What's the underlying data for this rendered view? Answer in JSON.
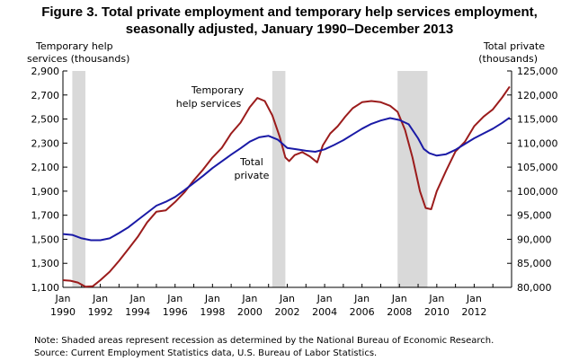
{
  "chart_data": {
    "type": "line",
    "title": [
      "Figure 3. Total private employment and temporary help services employment,",
      "seasonally adjusted, January 1990–December 2013"
    ],
    "left_axis": {
      "title": [
        "Temporary help",
        "services (thousands)"
      ],
      "range": [
        1100,
        2900
      ],
      "ticks": [
        "1,100",
        "1,300",
        "1,500",
        "1,700",
        "1,900",
        "2,100",
        "2,300",
        "2,500",
        "2,700",
        "2,900"
      ]
    },
    "right_axis": {
      "title": [
        "Total private",
        "(thousands)"
      ],
      "range": [
        80000,
        125000
      ],
      "ticks": [
        "80,000",
        "85,000",
        "90,000",
        "95,000",
        "100,000",
        "105,000",
        "110,000",
        "115,000",
        "120,000",
        "125,000"
      ]
    },
    "x_axis": {
      "range": [
        1990,
        2014
      ],
      "tick_labels": [
        [
          "Jan",
          "1990"
        ],
        [
          "Jan",
          "1992"
        ],
        [
          "Jan",
          "1994"
        ],
        [
          "Jan",
          "1996"
        ],
        [
          "Jan",
          "1998"
        ],
        [
          "Jan",
          "2000"
        ],
        [
          "Jan",
          "2002"
        ],
        [
          "Jan",
          "2004"
        ],
        [
          "Jan",
          "2006"
        ],
        [
          "Jan",
          "2008"
        ],
        [
          "Jan",
          "2010"
        ],
        [
          "Jan",
          "2012"
        ]
      ]
    },
    "recessions": [
      [
        1990.5,
        1991.2
      ],
      [
        2001.2,
        2001.9
      ],
      [
        2007.9,
        2009.5
      ]
    ],
    "series": [
      {
        "name": [
          "Temporary",
          "help services"
        ],
        "axis": "left",
        "color": "#9b1c1c",
        "points": [
          [
            1990.0,
            1160
          ],
          [
            1990.4,
            1155
          ],
          [
            1990.8,
            1140
          ],
          [
            1991.2,
            1105
          ],
          [
            1991.6,
            1110
          ],
          [
            1992.0,
            1160
          ],
          [
            1992.5,
            1230
          ],
          [
            1993.0,
            1320
          ],
          [
            1993.5,
            1420
          ],
          [
            1994.0,
            1520
          ],
          [
            1994.5,
            1640
          ],
          [
            1995.0,
            1730
          ],
          [
            1995.5,
            1740
          ],
          [
            1996.0,
            1810
          ],
          [
            1996.5,
            1890
          ],
          [
            1997.0,
            1990
          ],
          [
            1997.5,
            2080
          ],
          [
            1998.0,
            2180
          ],
          [
            1998.5,
            2260
          ],
          [
            1999.0,
            2380
          ],
          [
            1999.5,
            2470
          ],
          [
            2000.0,
            2600
          ],
          [
            2000.4,
            2675
          ],
          [
            2000.8,
            2650
          ],
          [
            2001.2,
            2530
          ],
          [
            2001.6,
            2350
          ],
          [
            2001.9,
            2180
          ],
          [
            2002.1,
            2150
          ],
          [
            2002.4,
            2200
          ],
          [
            2002.8,
            2225
          ],
          [
            2003.2,
            2190
          ],
          [
            2003.6,
            2140
          ],
          [
            2003.9,
            2280
          ],
          [
            2004.3,
            2380
          ],
          [
            2004.7,
            2440
          ],
          [
            2005.1,
            2520
          ],
          [
            2005.5,
            2590
          ],
          [
            2006.0,
            2640
          ],
          [
            2006.5,
            2650
          ],
          [
            2007.0,
            2640
          ],
          [
            2007.5,
            2610
          ],
          [
            2007.9,
            2560
          ],
          [
            2008.3,
            2410
          ],
          [
            2008.7,
            2180
          ],
          [
            2009.1,
            1900
          ],
          [
            2009.4,
            1760
          ],
          [
            2009.7,
            1750
          ],
          [
            2010.0,
            1900
          ],
          [
            2010.5,
            2070
          ],
          [
            2011.0,
            2230
          ],
          [
            2011.5,
            2310
          ],
          [
            2012.0,
            2440
          ],
          [
            2012.5,
            2520
          ],
          [
            2013.0,
            2580
          ],
          [
            2013.5,
            2680
          ],
          [
            2013.9,
            2770
          ]
        ]
      },
      {
        "name": [
          "Total",
          "private"
        ],
        "axis": "right",
        "color": "#1a1aa6",
        "points": [
          [
            1990.0,
            91100
          ],
          [
            1990.5,
            90900
          ],
          [
            1991.0,
            90200
          ],
          [
            1991.5,
            89800
          ],
          [
            1992.0,
            89800
          ],
          [
            1992.5,
            90200
          ],
          [
            1993.0,
            91300
          ],
          [
            1993.5,
            92500
          ],
          [
            1994.0,
            94000
          ],
          [
            1994.5,
            95500
          ],
          [
            1995.0,
            97000
          ],
          [
            1995.5,
            97800
          ],
          [
            1996.0,
            98800
          ],
          [
            1996.5,
            100200
          ],
          [
            1997.0,
            101700
          ],
          [
            1997.5,
            103200
          ],
          [
            1998.0,
            104800
          ],
          [
            1998.5,
            106200
          ],
          [
            1999.0,
            107600
          ],
          [
            1999.5,
            108900
          ],
          [
            2000.0,
            110300
          ],
          [
            2000.5,
            111200
          ],
          [
            2001.0,
            111500
          ],
          [
            2001.5,
            110700
          ],
          [
            2002.0,
            109000
          ],
          [
            2002.5,
            108700
          ],
          [
            2003.0,
            108400
          ],
          [
            2003.5,
            108200
          ],
          [
            2004.0,
            108700
          ],
          [
            2004.5,
            109600
          ],
          [
            2005.0,
            110600
          ],
          [
            2005.5,
            111800
          ],
          [
            2006.0,
            113000
          ],
          [
            2006.5,
            114000
          ],
          [
            2007.0,
            114700
          ],
          [
            2007.5,
            115200
          ],
          [
            2008.0,
            114800
          ],
          [
            2008.5,
            113900
          ],
          [
            2009.0,
            111000
          ],
          [
            2009.3,
            108800
          ],
          [
            2009.6,
            107900
          ],
          [
            2010.0,
            107400
          ],
          [
            2010.5,
            107700
          ],
          [
            2011.0,
            108600
          ],
          [
            2011.5,
            109800
          ],
          [
            2012.0,
            111000
          ],
          [
            2012.5,
            112000
          ],
          [
            2013.0,
            113000
          ],
          [
            2013.5,
            114200
          ],
          [
            2013.9,
            115300
          ]
        ]
      }
    ]
  },
  "notes": [
    "Note: Shaded areas represent recession as determined by the National Bureau of Economic Research.",
    "Source: Current Employment Statistics data, U.S. Bureau of Labor Statistics."
  ]
}
